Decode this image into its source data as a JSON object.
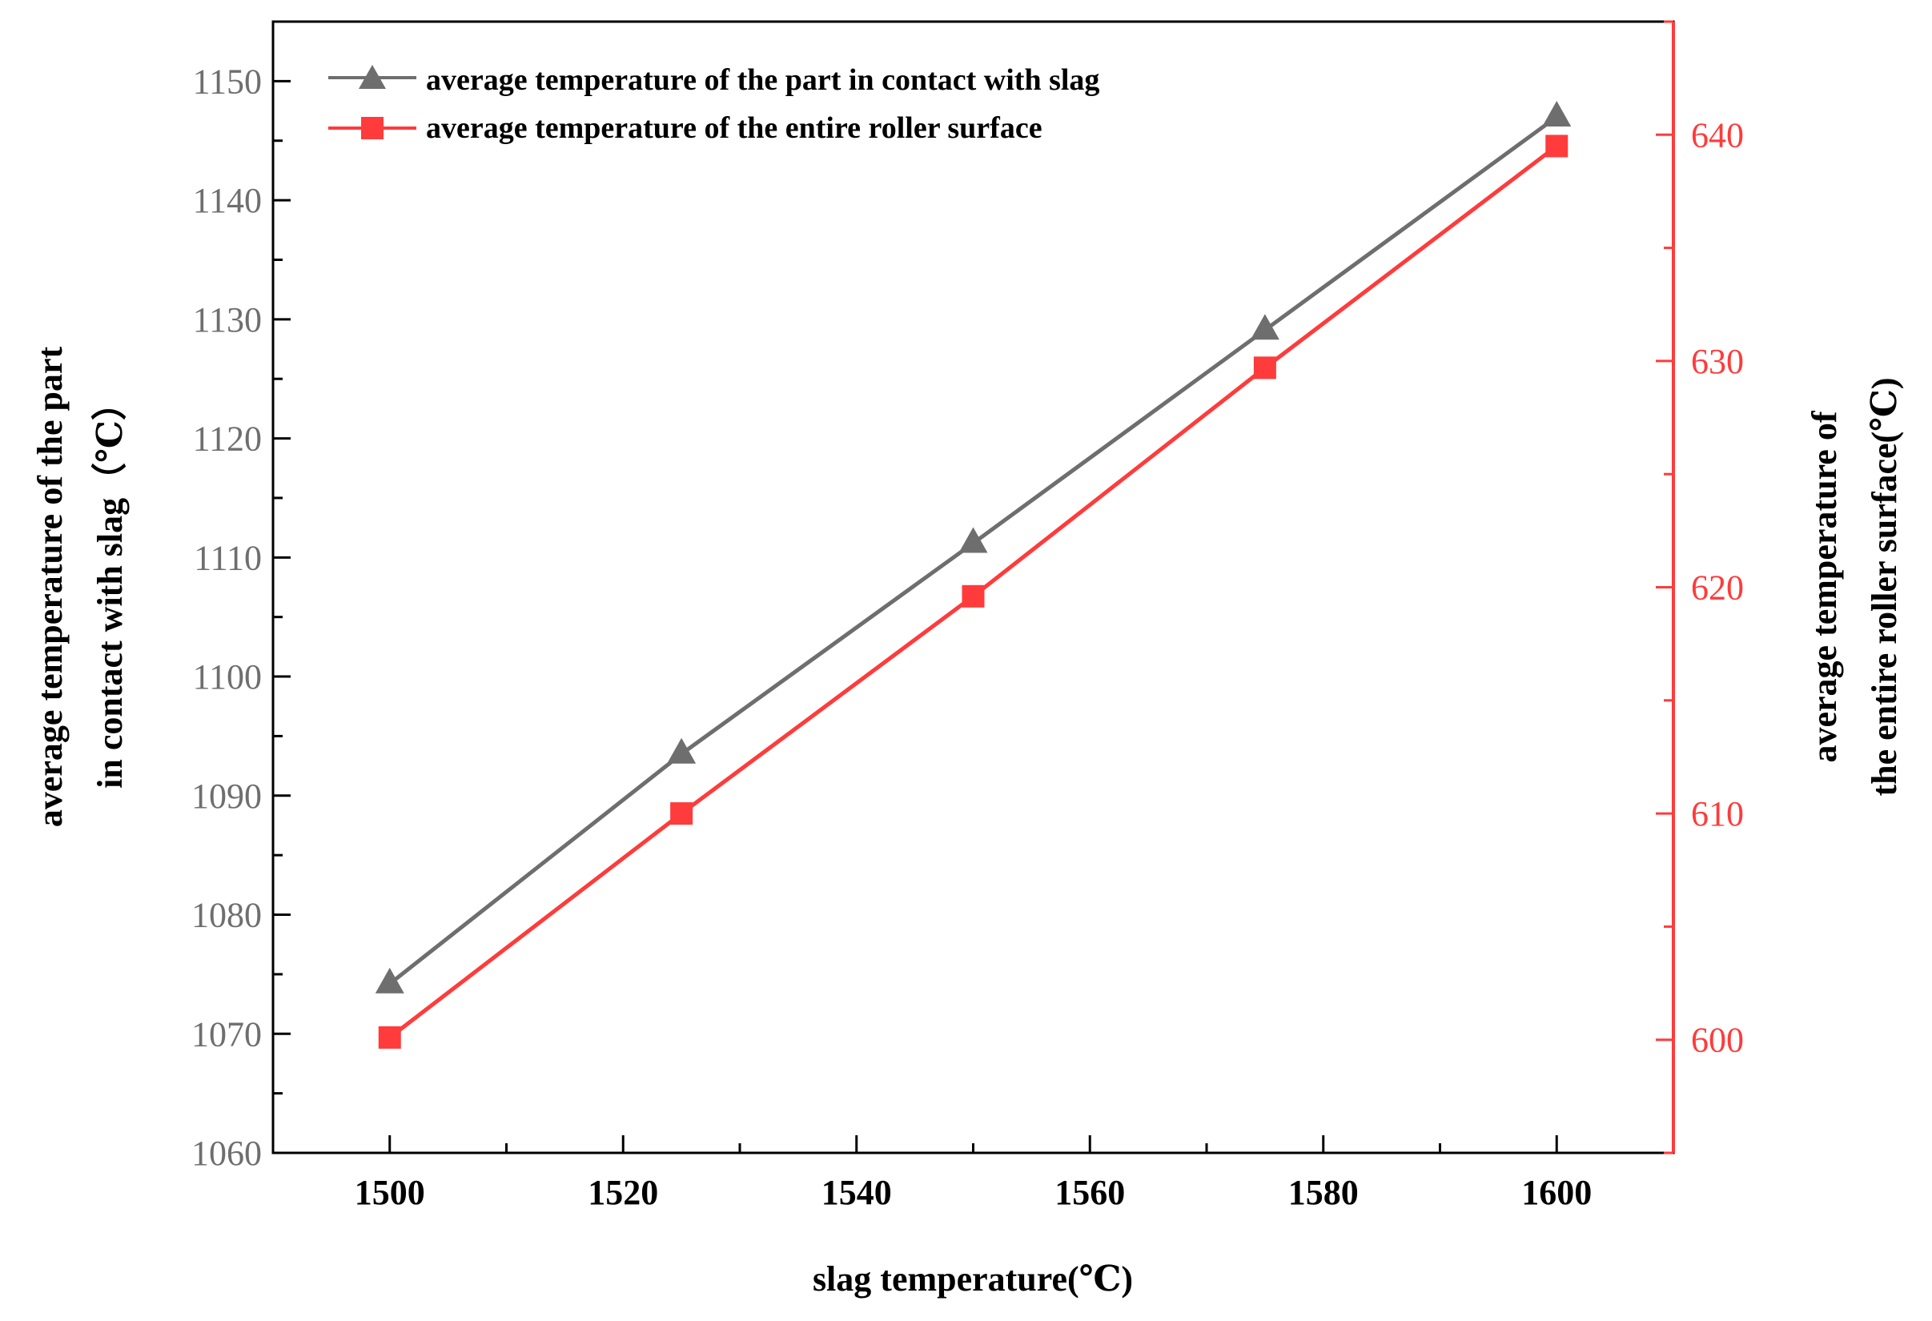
{
  "chart_data": {
    "type": "line",
    "x": [
      1500,
      1525,
      1550,
      1575,
      1600
    ],
    "xlabel": "slag temperature(℃)",
    "xlim": [
      1490,
      1610
    ],
    "xticks": [
      1500,
      1520,
      1540,
      1560,
      1580,
      1600
    ],
    "ylabel_left": [
      "average temperature of the part",
      "in contact with slag（℃）"
    ],
    "ylim_left": [
      1060,
      1155
    ],
    "yticks_left": [
      1060,
      1070,
      1080,
      1090,
      1100,
      1110,
      1120,
      1130,
      1140,
      1150
    ],
    "ylabel_right": [
      "average temperature of",
      "the entire roller surface(℃)"
    ],
    "ylim_right": [
      595,
      645
    ],
    "yticks_right": [
      600,
      610,
      620,
      630,
      640
    ],
    "series": [
      {
        "name": "average temperature of the part in contact with slag",
        "axis": "left",
        "marker": "triangle",
        "color": "#6e6e6e",
        "values": [
          1074.2,
          1093.5,
          1111.2,
          1129.1,
          1147.0
        ]
      },
      {
        "name": "average temperature of the entire roller surface",
        "axis": "right",
        "marker": "square",
        "color": "#ff3b3b",
        "values": [
          600.1,
          610.0,
          619.6,
          629.7,
          639.5
        ]
      }
    ],
    "legend_position": "top-left",
    "colors": {
      "left_axis": "#6e6e6e",
      "right_axis": "#ff3b3b",
      "bottom_axis": "#000000"
    }
  }
}
